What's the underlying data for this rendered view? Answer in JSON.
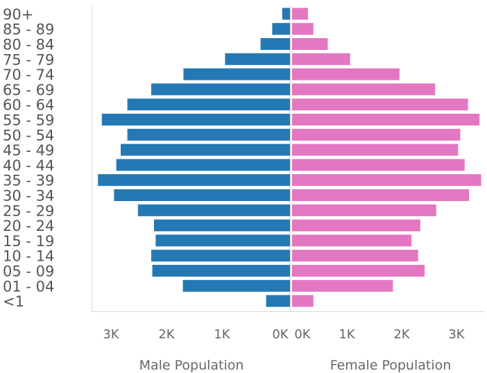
{
  "chart_data": {
    "type": "bar",
    "orientation": "horizontal-pyramid",
    "categories": [
      "90+",
      "85 - 89",
      "80 - 84",
      "75 - 79",
      "70 - 74",
      "65 - 69",
      "60 - 64",
      "55 - 59",
      "50 - 54",
      "45 - 49",
      "40 - 44",
      "35 - 39",
      "30 - 34",
      "25 - 29",
      "20 - 24",
      "15 - 19",
      "10 - 14",
      "05 - 09",
      "01 - 04",
      "<1"
    ],
    "series": [
      {
        "name": "Male Population",
        "color": "#2479b4",
        "values": [
          140,
          320,
          530,
          1170,
          1920,
          2500,
          2930,
          3390,
          2930,
          3050,
          3130,
          3460,
          3170,
          2740,
          2450,
          2420,
          2500,
          2480,
          1930,
          430
        ]
      },
      {
        "name": "Female Population",
        "color": "#e377c2",
        "values": [
          290,
          390,
          650,
          1060,
          1960,
          2610,
          3210,
          3420,
          3070,
          3030,
          3150,
          3450,
          3230,
          2630,
          2340,
          2180,
          2300,
          2420,
          1840,
          390
        ]
      }
    ],
    "left_axis": {
      "title": "Male Population",
      "range": [
        3600,
        0
      ],
      "ticks": [
        {
          "value": 3000,
          "label": "3K"
        },
        {
          "value": 2000,
          "label": "2K"
        },
        {
          "value": 1000,
          "label": "1K"
        },
        {
          "value": 0,
          "label": "0K"
        }
      ]
    },
    "right_axis": {
      "title": "Female Population",
      "range": [
        0,
        3600
      ],
      "ticks": [
        {
          "value": 0,
          "label": "0K"
        },
        {
          "value": 1000,
          "label": "1K"
        },
        {
          "value": 2000,
          "label": "2K"
        },
        {
          "value": 3000,
          "label": "3K"
        }
      ]
    },
    "grid": false
  }
}
